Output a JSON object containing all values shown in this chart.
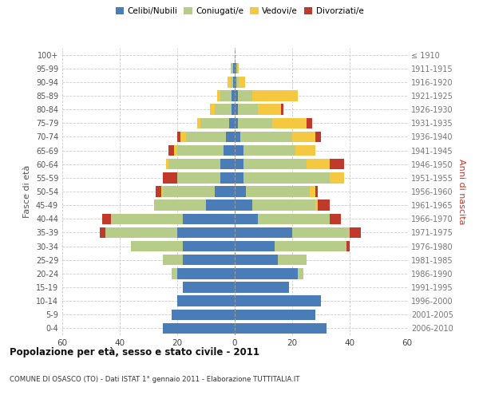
{
  "age_groups": [
    "0-4",
    "5-9",
    "10-14",
    "15-19",
    "20-24",
    "25-29",
    "30-34",
    "35-39",
    "40-44",
    "45-49",
    "50-54",
    "55-59",
    "60-64",
    "65-69",
    "70-74",
    "75-79",
    "80-84",
    "85-89",
    "90-94",
    "95-99",
    "100+"
  ],
  "birth_years": [
    "2006-2010",
    "2001-2005",
    "1996-2000",
    "1991-1995",
    "1986-1990",
    "1981-1985",
    "1976-1980",
    "1971-1975",
    "1966-1970",
    "1961-1965",
    "1956-1960",
    "1951-1955",
    "1946-1950",
    "1941-1945",
    "1936-1940",
    "1931-1935",
    "1926-1930",
    "1921-1925",
    "1916-1920",
    "1911-1915",
    "≤ 1910"
  ],
  "male": {
    "celibi": [
      25,
      22,
      20,
      18,
      20,
      18,
      18,
      20,
      18,
      10,
      7,
      5,
      5,
      4,
      3,
      2,
      1,
      1,
      0.5,
      0.5,
      0
    ],
    "coniugati": [
      0,
      0,
      0,
      0,
      2,
      7,
      18,
      25,
      25,
      18,
      18,
      15,
      18,
      16,
      14,
      10,
      6,
      4,
      1,
      0.5,
      0
    ],
    "vedovi": [
      0,
      0,
      0,
      0,
      0,
      0,
      0,
      0,
      0,
      0,
      0.5,
      0,
      1,
      1,
      2,
      1,
      1.5,
      1,
      1,
      0.5,
      0
    ],
    "divorziati": [
      0,
      0,
      0,
      0,
      0,
      0,
      0,
      2,
      3,
      0,
      2,
      5,
      0,
      2,
      1,
      0,
      0,
      0,
      0,
      0,
      0
    ]
  },
  "female": {
    "nubili": [
      32,
      28,
      30,
      19,
      22,
      15,
      14,
      20,
      8,
      6,
      4,
      3,
      3,
      3,
      2,
      1,
      1,
      1,
      0.5,
      0.5,
      0
    ],
    "coniugate": [
      0,
      0,
      0,
      0,
      2,
      10,
      25,
      20,
      25,
      22,
      22,
      30,
      22,
      18,
      18,
      12,
      7,
      5,
      1,
      0.5,
      0
    ],
    "vedove": [
      0,
      0,
      0,
      0,
      0,
      0,
      0,
      0,
      0,
      1,
      2,
      5,
      8,
      7,
      8,
      12,
      8,
      16,
      2,
      0.5,
      0
    ],
    "divorziate": [
      0,
      0,
      0,
      0,
      0,
      0,
      1,
      4,
      4,
      4,
      1,
      0,
      5,
      0,
      2,
      2,
      1,
      0,
      0,
      0,
      0
    ]
  },
  "colors": {
    "celibi": "#4a7db8",
    "coniugati": "#b8cc8a",
    "vedovi": "#f5c842",
    "divorziati": "#c0392b"
  },
  "legend_labels": [
    "Celibi/Nubili",
    "Coniugati/e",
    "Vedovi/e",
    "Divorziati/e"
  ],
  "title": "Popolazione per età, sesso e stato civile - 2011",
  "subtitle": "COMUNE DI OSASCO (TO) - Dati ISTAT 1° gennaio 2011 - Elaborazione TUTTITALIA.IT",
  "ylabel_left": "Fasce di età",
  "ylabel_right": "Anni di nascita",
  "xlim": 60,
  "background_color": "#ffffff",
  "grid_color": "#cccccc"
}
